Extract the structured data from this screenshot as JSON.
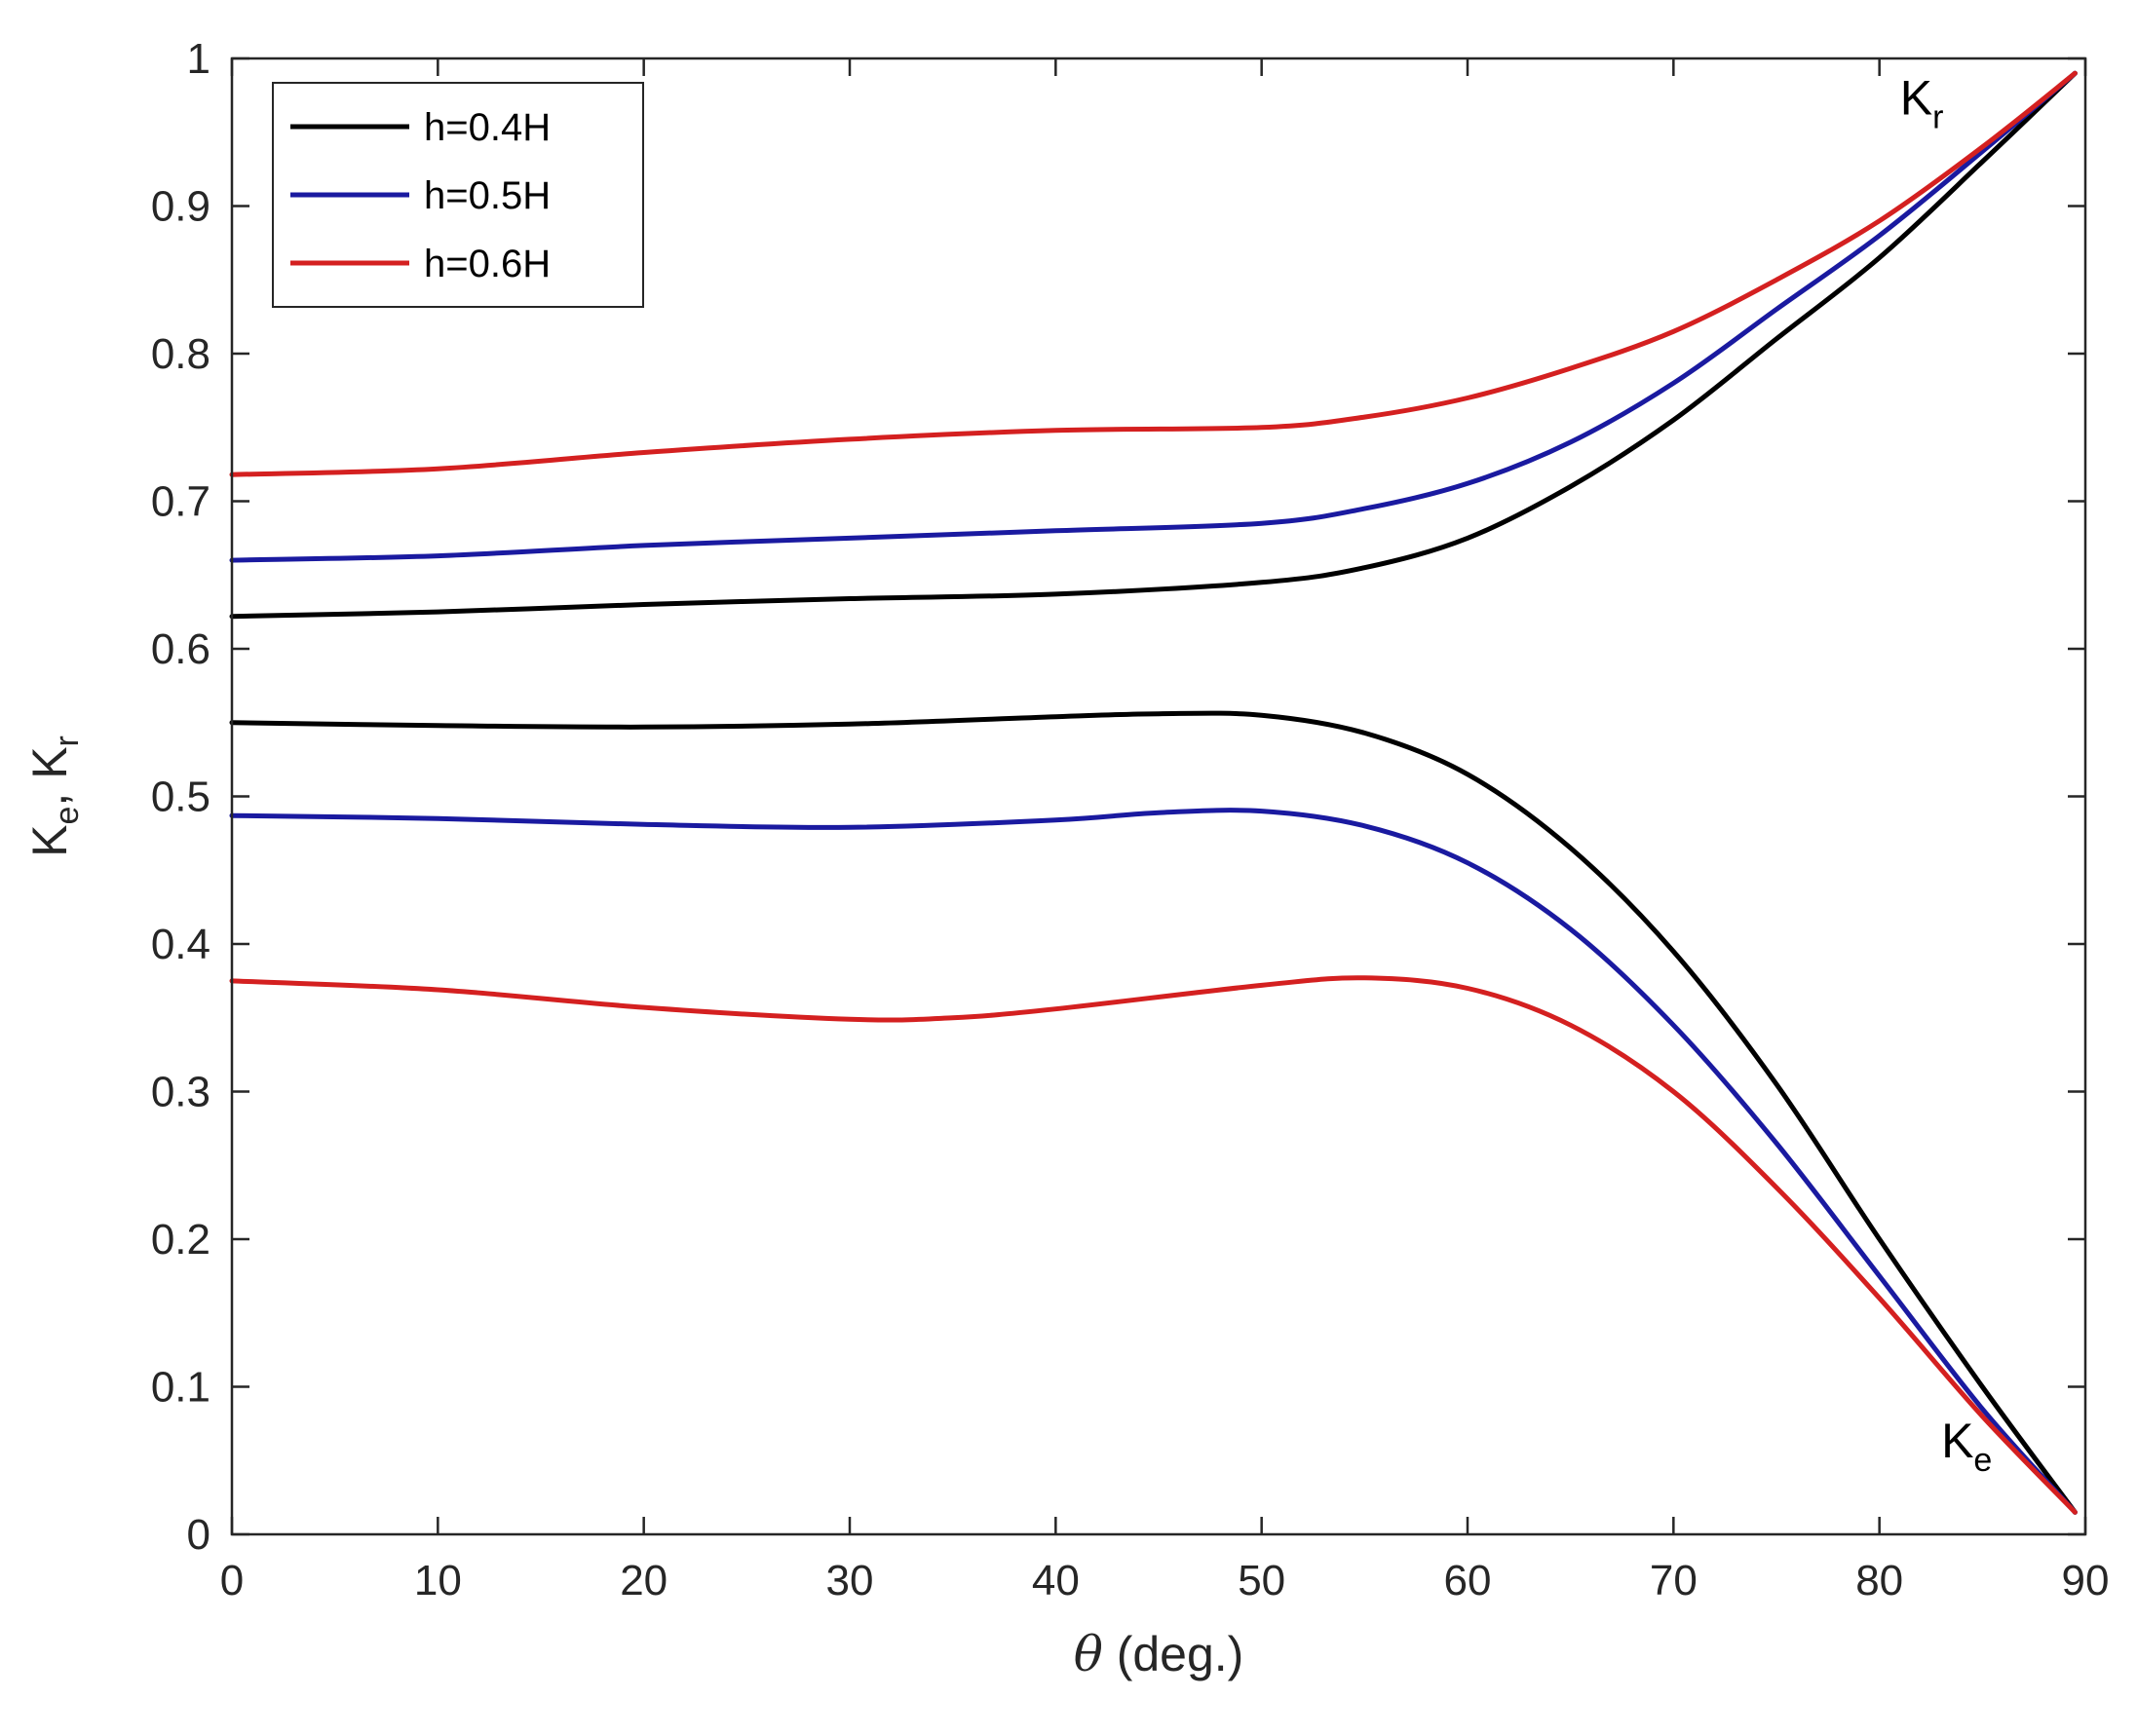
{
  "chart_data": {
    "type": "line",
    "xlabel_symbol": "θ",
    "xlabel_unit": " (deg.)",
    "ylabel_parts": [
      "K",
      "e",
      ", K",
      "r"
    ],
    "xlim": [
      0,
      90
    ],
    "ylim": [
      0,
      1
    ],
    "x_ticks": [
      0,
      10,
      20,
      30,
      40,
      50,
      60,
      70,
      80,
      90
    ],
    "y_ticks": [
      0,
      0.1,
      0.2,
      0.3,
      0.4,
      0.5,
      0.6,
      0.7,
      0.8,
      0.9,
      1
    ],
    "grid": false,
    "legend_position": "top-left",
    "annotations": [
      {
        "base": "K",
        "sub": "r",
        "x": 81,
        "y": 0.962
      },
      {
        "base": "K",
        "sub": "e",
        "x": 83,
        "y": 0.052
      }
    ],
    "series": [
      {
        "name": "h=0.4H",
        "group": "Kr",
        "color": "#000000",
        "x": [
          0,
          10,
          20,
          30,
          40,
          50,
          55,
          60,
          65,
          70,
          75,
          80,
          85,
          89.5
        ],
        "y": [
          0.622,
          0.625,
          0.63,
          0.634,
          0.637,
          0.645,
          0.655,
          0.675,
          0.71,
          0.755,
          0.81,
          0.865,
          0.93,
          0.99
        ]
      },
      {
        "name": "h=0.5H",
        "group": "Kr",
        "color": "#1a1aa0",
        "x": [
          0,
          10,
          20,
          30,
          40,
          50,
          55,
          60,
          65,
          70,
          75,
          80,
          85,
          89.5
        ],
        "y": [
          0.66,
          0.663,
          0.67,
          0.675,
          0.68,
          0.685,
          0.695,
          0.712,
          0.74,
          0.78,
          0.83,
          0.88,
          0.937,
          0.99
        ]
      },
      {
        "name": "h=0.6H",
        "group": "Kr",
        "color": "#d42020",
        "x": [
          0,
          10,
          20,
          30,
          40,
          50,
          55,
          60,
          65,
          70,
          75,
          80,
          85,
          89.5
        ],
        "y": [
          0.718,
          0.722,
          0.733,
          0.742,
          0.748,
          0.75,
          0.757,
          0.77,
          0.79,
          0.815,
          0.85,
          0.89,
          0.94,
          0.99
        ]
      },
      {
        "name": "h=0.4H",
        "group": "Ke",
        "color": "#000000",
        "x": [
          0,
          10,
          20,
          30,
          40,
          45,
          50,
          55,
          60,
          65,
          70,
          75,
          80,
          85,
          89.5
        ],
        "y": [
          0.55,
          0.548,
          0.547,
          0.549,
          0.554,
          0.556,
          0.555,
          0.543,
          0.515,
          0.465,
          0.395,
          0.305,
          0.2,
          0.1,
          0.015
        ]
      },
      {
        "name": "h=0.5H",
        "group": "Ke",
        "color": "#1a1aa0",
        "x": [
          0,
          10,
          20,
          30,
          40,
          45,
          50,
          55,
          60,
          65,
          70,
          75,
          80,
          85,
          89.5
        ],
        "y": [
          0.487,
          0.485,
          0.481,
          0.479,
          0.484,
          0.489,
          0.49,
          0.48,
          0.455,
          0.41,
          0.345,
          0.265,
          0.175,
          0.085,
          0.015
        ]
      },
      {
        "name": "h=0.6H",
        "group": "Ke",
        "color": "#d42020",
        "x": [
          0,
          10,
          20,
          30,
          35,
          40,
          50,
          55,
          60,
          65,
          70,
          75,
          80,
          85,
          89.5
        ],
        "y": [
          0.375,
          0.369,
          0.357,
          0.349,
          0.35,
          0.356,
          0.372,
          0.377,
          0.37,
          0.345,
          0.3,
          0.235,
          0.16,
          0.08,
          0.015
        ]
      }
    ],
    "legend": [
      {
        "label": "h=0.4H",
        "color": "#000000"
      },
      {
        "label": "h=0.5H",
        "color": "#1a1aa0"
      },
      {
        "label": "h=0.6H",
        "color": "#d42020"
      }
    ]
  }
}
